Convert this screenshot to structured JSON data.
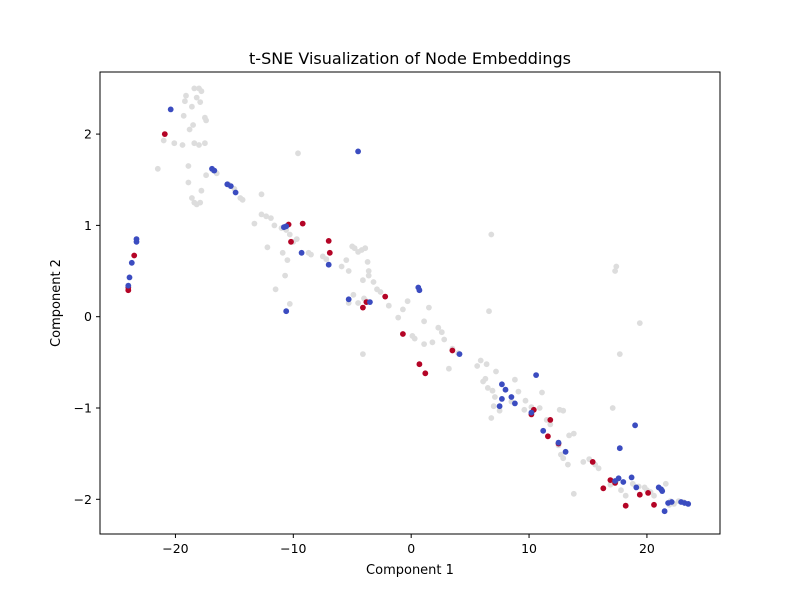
{
  "chart_data": {
    "type": "scatter",
    "title": "t-SNE Visualization of Node Embeddings",
    "xlabel": "Component 1",
    "ylabel": "Component 2",
    "xlim": [
      -26.4,
      26.2
    ],
    "ylim": [
      -2.38,
      2.68
    ],
    "xticks": [
      -20,
      -10,
      0,
      10,
      20
    ],
    "yticks": [
      -2,
      -1,
      0,
      1,
      2
    ],
    "grid": false,
    "colors": {
      "gray": "#dddddd",
      "red": "#b40426",
      "blue": "#3b4cc0"
    },
    "series": [
      {
        "color": "gray",
        "points": [
          [
            -18.4,
            2.5
          ],
          [
            -18.0,
            2.5
          ],
          [
            -17.8,
            2.47
          ],
          [
            -18.2,
            2.4
          ],
          [
            -17.9,
            2.35
          ],
          [
            -19.1,
            2.42
          ],
          [
            -19.2,
            2.36
          ],
          [
            -18.6,
            2.3
          ],
          [
            -19.3,
            2.2
          ],
          [
            -18.5,
            2.1
          ],
          [
            -17.5,
            2.18
          ],
          [
            -17.4,
            2.15
          ],
          [
            -18.8,
            2.05
          ],
          [
            -17.5,
            1.9
          ],
          [
            -18.0,
            1.88
          ],
          [
            -18.4,
            1.9
          ],
          [
            -19.4,
            1.88
          ],
          [
            -20.1,
            1.9
          ],
          [
            -21.0,
            1.93
          ],
          [
            -21.5,
            1.62
          ],
          [
            -18.9,
            1.65
          ],
          [
            -18.9,
            1.47
          ],
          [
            -18.6,
            1.3
          ],
          [
            -18.4,
            1.25
          ],
          [
            -18.2,
            1.23
          ],
          [
            -17.9,
            1.25
          ],
          [
            -17.8,
            1.38
          ],
          [
            -17.4,
            1.55
          ],
          [
            -16.8,
            1.6
          ],
          [
            -16.5,
            1.57
          ],
          [
            -15.5,
            1.45
          ],
          [
            -15.0,
            1.4
          ],
          [
            -14.5,
            1.3
          ],
          [
            -14.3,
            1.28
          ],
          [
            -12.7,
            1.34
          ],
          [
            -12.7,
            1.12
          ],
          [
            -12.3,
            1.1
          ],
          [
            -11.9,
            1.08
          ],
          [
            -13.3,
            1.02
          ],
          [
            -11.6,
            1.0
          ],
          [
            -11.0,
            0.97
          ],
          [
            -10.6,
            0.95
          ],
          [
            -10.3,
            0.9
          ],
          [
            -10.0,
            0.82
          ],
          [
            -9.7,
            0.85
          ],
          [
            -12.2,
            0.76
          ],
          [
            -10.9,
            0.7
          ],
          [
            -10.5,
            0.62
          ],
          [
            -9.6,
            1.79
          ],
          [
            -11.5,
            0.3
          ],
          [
            -10.7,
            0.45
          ],
          [
            -10.3,
            0.14
          ],
          [
            -8.7,
            0.7
          ],
          [
            -8.5,
            0.68
          ],
          [
            -7.5,
            0.66
          ],
          [
            -7.2,
            0.63
          ],
          [
            -5.9,
            0.55
          ],
          [
            -5.5,
            0.62
          ],
          [
            -5.3,
            0.5
          ],
          [
            -5.0,
            0.77
          ],
          [
            -4.8,
            0.75
          ],
          [
            -4.5,
            0.71
          ],
          [
            -4.2,
            0.73
          ],
          [
            -3.9,
            0.75
          ],
          [
            -3.7,
            0.6
          ],
          [
            -3.6,
            0.5
          ],
          [
            -3.6,
            0.45
          ],
          [
            -4.1,
            0.4
          ],
          [
            -3.2,
            0.38
          ],
          [
            -2.9,
            0.3
          ],
          [
            -2.6,
            0.27
          ],
          [
            -4.0,
            0.2
          ],
          [
            -3.8,
            0.17
          ],
          [
            -4.9,
            0.24
          ],
          [
            -4.5,
            0.15
          ],
          [
            -5.3,
            0.15
          ],
          [
            -4.1,
            -0.41
          ],
          [
            -1.9,
            0.12
          ],
          [
            -1.1,
            -0.01
          ],
          [
            -0.7,
            0.08
          ],
          [
            -0.3,
            0.17
          ],
          [
            0.1,
            -0.21
          ],
          [
            0.3,
            -0.24
          ],
          [
            1.1,
            -0.3
          ],
          [
            1.1,
            -0.05
          ],
          [
            1.5,
            0.1
          ],
          [
            1.8,
            -0.28
          ],
          [
            2.3,
            -0.12
          ],
          [
            2.6,
            -0.17
          ],
          [
            2.8,
            -0.25
          ],
          [
            3.2,
            -0.57
          ],
          [
            3.5,
            -0.35
          ],
          [
            4.0,
            -0.4
          ],
          [
            5.6,
            -0.54
          ],
          [
            5.9,
            -0.48
          ],
          [
            6.4,
            -0.52
          ],
          [
            6.6,
            0.06
          ],
          [
            6.8,
            0.9
          ],
          [
            7.2,
            -0.6
          ],
          [
            6.3,
            -0.68
          ],
          [
            6.1,
            -0.71
          ],
          [
            6.5,
            -0.78
          ],
          [
            6.9,
            -0.81
          ],
          [
            7.1,
            -0.88
          ],
          [
            7.0,
            -0.98
          ],
          [
            6.8,
            -1.11
          ],
          [
            7.5,
            -1.03
          ],
          [
            8.5,
            -0.93
          ],
          [
            8.8,
            -0.69
          ],
          [
            9.1,
            -0.82
          ],
          [
            9.6,
            -1.02
          ],
          [
            9.7,
            -0.92
          ],
          [
            10.2,
            -0.99
          ],
          [
            10.9,
            -1.0
          ],
          [
            11.1,
            -0.83
          ],
          [
            11.5,
            -1.13
          ],
          [
            11.8,
            -1.18
          ],
          [
            12.6,
            -1.02
          ],
          [
            12.9,
            -1.03
          ],
          [
            12.5,
            -1.41
          ],
          [
            12.7,
            -1.51
          ],
          [
            12.9,
            -1.55
          ],
          [
            13.4,
            -1.3
          ],
          [
            13.8,
            -1.28
          ],
          [
            13.3,
            -1.62
          ],
          [
            13.8,
            -1.94
          ],
          [
            14.6,
            -1.59
          ],
          [
            15.1,
            -1.56
          ],
          [
            15.6,
            -1.62
          ],
          [
            15.9,
            -1.66
          ],
          [
            17.4,
            0.55
          ],
          [
            17.3,
            0.5
          ],
          [
            17.7,
            -0.41
          ],
          [
            19.4,
            -0.07
          ],
          [
            17.1,
            -1.0
          ],
          [
            16.9,
            -1.84
          ],
          [
            17.4,
            -1.8
          ],
          [
            17.8,
            -1.9
          ],
          [
            18.2,
            -1.96
          ],
          [
            18.8,
            -1.83
          ],
          [
            19.3,
            -1.86
          ],
          [
            19.8,
            -1.87
          ],
          [
            20.0,
            -1.9
          ],
          [
            20.3,
            -1.92
          ],
          [
            20.6,
            -1.96
          ],
          [
            21.3,
            -1.9
          ],
          [
            21.6,
            -1.83
          ],
          [
            22.0,
            -2.02
          ],
          [
            22.3,
            -2.05
          ],
          [
            22.7,
            -2.02
          ],
          [
            23.1,
            -2.03
          ],
          [
            21.9,
            -2.06
          ]
        ]
      },
      {
        "color": "red",
        "points": [
          [
            -24.0,
            0.29
          ],
          [
            -24.0,
            0.32
          ],
          [
            -23.5,
            0.67
          ],
          [
            -20.9,
            2.0
          ],
          [
            -10.4,
            1.01
          ],
          [
            -9.2,
            1.02
          ],
          [
            -10.2,
            0.82
          ],
          [
            -7.0,
            0.83
          ],
          [
            -6.9,
            0.7
          ],
          [
            -3.8,
            0.16
          ],
          [
            -4.1,
            0.1
          ],
          [
            -2.2,
            0.22
          ],
          [
            -0.7,
            -0.19
          ],
          [
            0.7,
            -0.52
          ],
          [
            1.2,
            -0.62
          ],
          [
            3.5,
            -0.37
          ],
          [
            10.2,
            -1.07
          ],
          [
            10.4,
            -1.02
          ],
          [
            11.6,
            -1.31
          ],
          [
            11.8,
            -1.13
          ],
          [
            12.5,
            -1.39
          ],
          [
            15.4,
            -1.59
          ],
          [
            16.3,
            -1.88
          ],
          [
            16.9,
            -1.79
          ],
          [
            17.3,
            -1.82
          ],
          [
            18.2,
            -2.07
          ],
          [
            19.4,
            -1.95
          ],
          [
            20.1,
            -1.93
          ],
          [
            20.6,
            -2.06
          ]
        ]
      },
      {
        "color": "blue",
        "points": [
          [
            -24.0,
            0.34
          ],
          [
            -23.9,
            0.43
          ],
          [
            -23.7,
            0.59
          ],
          [
            -23.3,
            0.82
          ],
          [
            -23.3,
            0.85
          ],
          [
            -20.4,
            2.27
          ],
          [
            -16.9,
            1.62
          ],
          [
            -16.7,
            1.6
          ],
          [
            -15.6,
            1.45
          ],
          [
            -15.3,
            1.43
          ],
          [
            -14.9,
            1.36
          ],
          [
            -10.8,
            0.98
          ],
          [
            -10.6,
            0.99
          ],
          [
            -10.6,
            0.06
          ],
          [
            -9.3,
            0.7
          ],
          [
            -7.0,
            0.57
          ],
          [
            -5.3,
            0.19
          ],
          [
            -4.5,
            1.81
          ],
          [
            -3.5,
            0.16
          ],
          [
            0.6,
            0.32
          ],
          [
            0.7,
            0.29
          ],
          [
            4.1,
            -0.41
          ],
          [
            7.7,
            -0.74
          ],
          [
            8.0,
            -0.8
          ],
          [
            7.7,
            -0.9
          ],
          [
            8.5,
            -0.88
          ],
          [
            7.5,
            -0.98
          ],
          [
            8.8,
            -0.95
          ],
          [
            10.6,
            -0.64
          ],
          [
            10.2,
            -1.05
          ],
          [
            11.2,
            -1.25
          ],
          [
            12.5,
            -1.38
          ],
          [
            13.1,
            -1.48
          ],
          [
            17.3,
            -1.8
          ],
          [
            17.6,
            -1.77
          ],
          [
            17.7,
            -1.44
          ],
          [
            18.0,
            -1.81
          ],
          [
            18.7,
            -1.76
          ],
          [
            19.0,
            -1.19
          ],
          [
            19.1,
            -1.87
          ],
          [
            21.0,
            -1.87
          ],
          [
            21.2,
            -1.89
          ],
          [
            21.3,
            -1.91
          ],
          [
            21.5,
            -2.13
          ],
          [
            21.8,
            -2.04
          ],
          [
            22.1,
            -2.03
          ],
          [
            22.9,
            -2.03
          ],
          [
            23.2,
            -2.04
          ],
          [
            23.5,
            -2.05
          ]
        ]
      }
    ]
  }
}
